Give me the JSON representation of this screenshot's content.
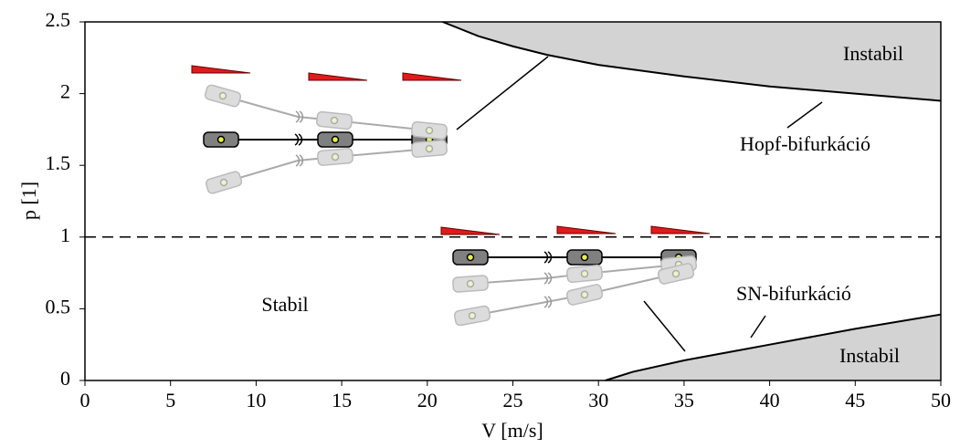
{
  "chart_data": {
    "type": "line",
    "x_label": "V [m/s]",
    "y_label": "p [1]",
    "xlim": [
      0,
      50
    ],
    "xticks": [
      0,
      5,
      10,
      15,
      20,
      25,
      30,
      35,
      40,
      45,
      50
    ],
    "ylim": [
      0,
      2.5
    ],
    "yticks": [
      0,
      0.5,
      1,
      1.5,
      2,
      2.5
    ],
    "series": [
      {
        "x": [
          20.9,
          23,
          25,
          27,
          30,
          35,
          40,
          45,
          50
        ],
        "values": [
          2.5,
          2.4,
          2.33,
          2.27,
          2.2,
          2.12,
          2.05,
          2.0,
          1.95
        ],
        "color": "#000000",
        "fill": "above",
        "fill_color": "#d3d3d3"
      },
      {
        "x": [
          30.4,
          32,
          35,
          40,
          45,
          50
        ],
        "values": [
          0,
          0.06,
          0.14,
          0.25,
          0.36,
          0.46
        ],
        "color": "#000000",
        "fill": "below",
        "fill_color": "#d3d3d3"
      }
    ],
    "reference_line": {
      "y": 1,
      "style": "dashed"
    },
    "annotations": [
      "Instabil",
      "Hopf-bifurkáció",
      "SN-bifurkáció",
      "Stabil",
      "Instabil"
    ]
  }
}
